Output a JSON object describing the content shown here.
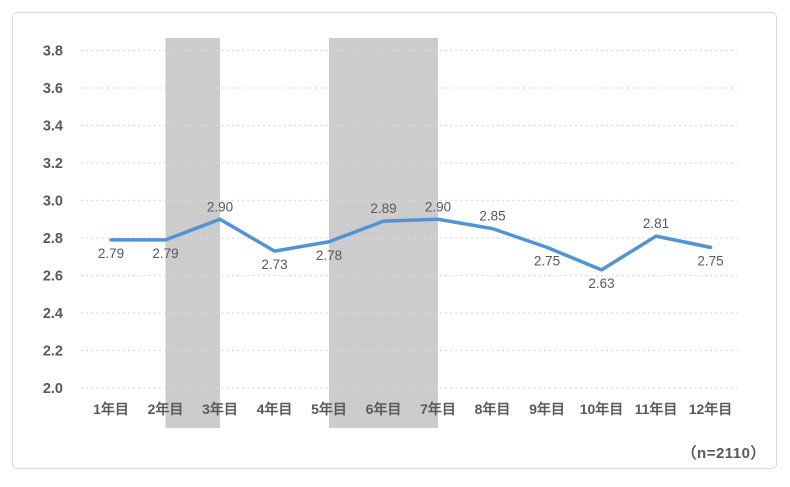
{
  "chart_data": {
    "type": "line",
    "title": "",
    "xlabel": "",
    "ylabel": "",
    "categories": [
      "1年目",
      "2年目",
      "3年目",
      "4年目",
      "5年目",
      "6年目",
      "7年目",
      "8年目",
      "9年目",
      "10年目",
      "11年目",
      "12年目"
    ],
    "values": [
      2.79,
      2.79,
      2.9,
      2.73,
      2.78,
      2.89,
      2.9,
      2.85,
      2.75,
      2.63,
      2.81,
      2.75
    ],
    "data_labels": [
      "2.79",
      "2.79",
      "2.90",
      "2.73",
      "2.78",
      "2.89",
      "2.90",
      "2.85",
      "2.75",
      "2.63",
      "2.81",
      "2.75"
    ],
    "label_positions": [
      "below",
      "below",
      "above",
      "below",
      "below",
      "above",
      "above",
      "above",
      "below",
      "below",
      "above",
      "below"
    ],
    "yticks": [
      "2.0",
      "2.2",
      "2.4",
      "2.6",
      "2.8",
      "3.0",
      "3.2",
      "3.4",
      "3.6",
      "3.8"
    ],
    "ylim": [
      2.0,
      3.8
    ],
    "grid": "dotted-horizontal",
    "legend": "none",
    "highlight_bands": [
      {
        "from_category": "2年目",
        "to_category": "3年目"
      },
      {
        "from_category": "5年目",
        "to_category": "7年目"
      }
    ],
    "annotation": "（n=2110）",
    "colors": {
      "line": "#4f94d4",
      "band": "#cccccc",
      "grid": "#d9d9d9",
      "text": "#595959",
      "border": "#d9d9d9",
      "background": "#ffffff"
    }
  }
}
